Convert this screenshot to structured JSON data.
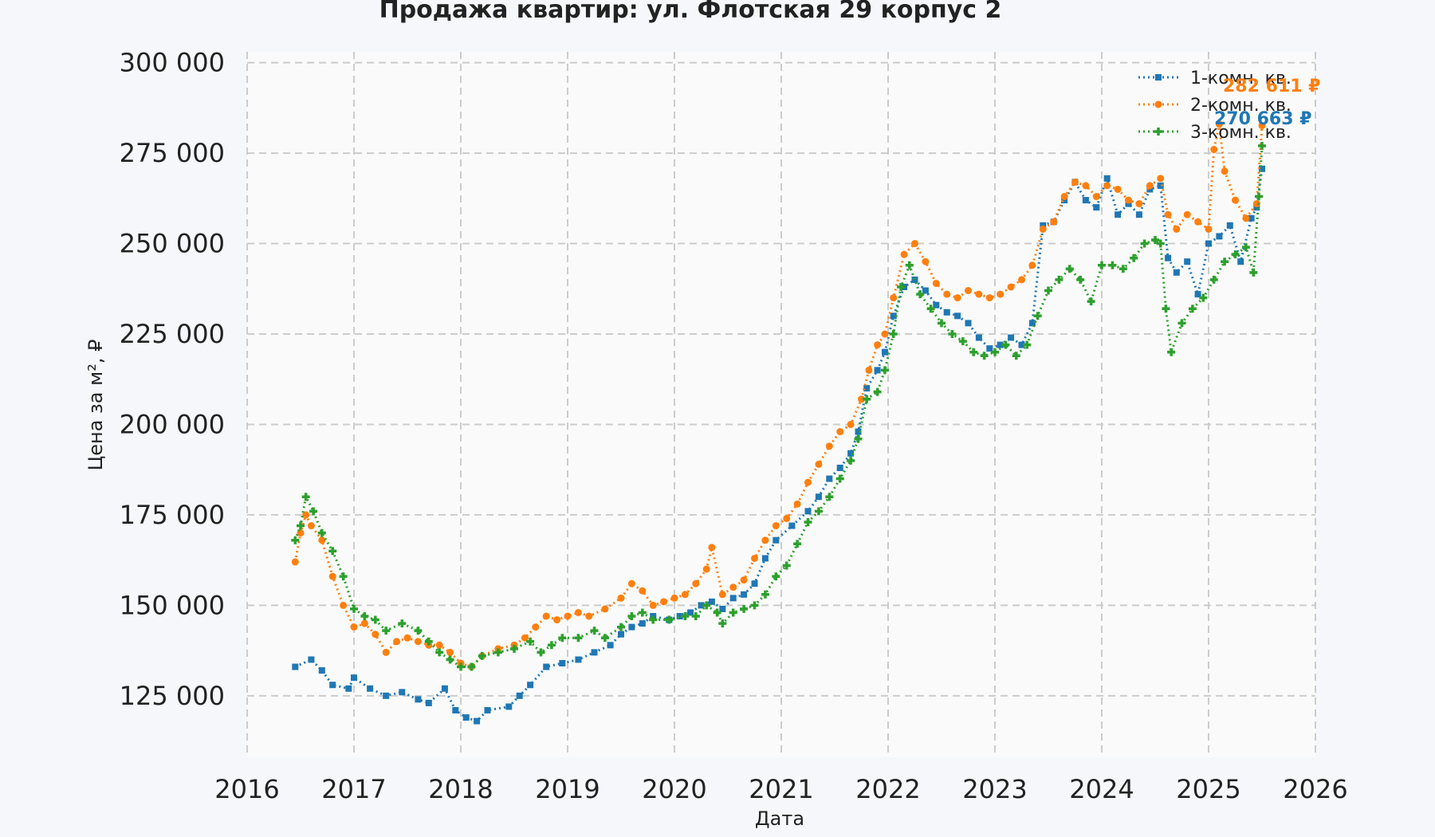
{
  "chart_data": {
    "type": "scatter",
    "title": "Продажа квартир: ул. Флотская 29 корпус 2",
    "xlabel": "Дата",
    "ylabel": "Цена за м², ₽",
    "xlim": [
      2016,
      2026
    ],
    "ylim": [
      108000,
      303000
    ],
    "grid": true,
    "legend_position": "top-right",
    "x_ticks": [
      "2016",
      "2017",
      "2018",
      "2019",
      "2020",
      "2021",
      "2022",
      "2023",
      "2024",
      "2025",
      "2026"
    ],
    "y_ticks": [
      "125 000",
      "150 000",
      "175 000",
      "200 000",
      "225 000",
      "250 000",
      "275 000",
      "300 000"
    ],
    "series": [
      {
        "name": "1-комн. кв.",
        "color": "#1f77b4",
        "marker": "square",
        "end_label": "270 663 ₽",
        "points": [
          [
            2016.45,
            133000
          ],
          [
            2016.6,
            135000
          ],
          [
            2016.7,
            132000
          ],
          [
            2016.8,
            128000
          ],
          [
            2016.95,
            127000
          ],
          [
            2017.0,
            130000
          ],
          [
            2017.15,
            127000
          ],
          [
            2017.3,
            125000
          ],
          [
            2017.45,
            126000
          ],
          [
            2017.6,
            124000
          ],
          [
            2017.7,
            123000
          ],
          [
            2017.85,
            127000
          ],
          [
            2017.95,
            121000
          ],
          [
            2018.05,
            119000
          ],
          [
            2018.15,
            118000
          ],
          [
            2018.25,
            121000
          ],
          [
            2018.45,
            122000
          ],
          [
            2018.55,
            125000
          ],
          [
            2018.65,
            128000
          ],
          [
            2018.8,
            133000
          ],
          [
            2018.95,
            134000
          ],
          [
            2019.1,
            135000
          ],
          [
            2019.25,
            137000
          ],
          [
            2019.4,
            139000
          ],
          [
            2019.5,
            142000
          ],
          [
            2019.6,
            144000
          ],
          [
            2019.7,
            145000
          ],
          [
            2019.8,
            147000
          ],
          [
            2019.95,
            146000
          ],
          [
            2020.05,
            147000
          ],
          [
            2020.15,
            148000
          ],
          [
            2020.25,
            150000
          ],
          [
            2020.35,
            151000
          ],
          [
            2020.45,
            149000
          ],
          [
            2020.55,
            152000
          ],
          [
            2020.65,
            153000
          ],
          [
            2020.75,
            156000
          ],
          [
            2020.85,
            163000
          ],
          [
            2020.95,
            168000
          ],
          [
            2021.1,
            172000
          ],
          [
            2021.25,
            176000
          ],
          [
            2021.35,
            180000
          ],
          [
            2021.45,
            185000
          ],
          [
            2021.55,
            188000
          ],
          [
            2021.65,
            192000
          ],
          [
            2021.72,
            198000
          ],
          [
            2021.8,
            210000
          ],
          [
            2021.9,
            215000
          ],
          [
            2021.97,
            220000
          ],
          [
            2022.05,
            230000
          ],
          [
            2022.15,
            238000
          ],
          [
            2022.25,
            240000
          ],
          [
            2022.35,
            237000
          ],
          [
            2022.45,
            233000
          ],
          [
            2022.55,
            231000
          ],
          [
            2022.65,
            230000
          ],
          [
            2022.75,
            228000
          ],
          [
            2022.85,
            224000
          ],
          [
            2022.95,
            221000
          ],
          [
            2023.05,
            222000
          ],
          [
            2023.15,
            224000
          ],
          [
            2023.25,
            222000
          ],
          [
            2023.35,
            228000
          ],
          [
            2023.45,
            255000
          ],
          [
            2023.55,
            256000
          ],
          [
            2023.65,
            262000
          ],
          [
            2023.75,
            267000
          ],
          [
            2023.85,
            262000
          ],
          [
            2023.95,
            260000
          ],
          [
            2024.05,
            268000
          ],
          [
            2024.15,
            258000
          ],
          [
            2024.25,
            261000
          ],
          [
            2024.35,
            258000
          ],
          [
            2024.45,
            265000
          ],
          [
            2024.55,
            266000
          ],
          [
            2024.62,
            246000
          ],
          [
            2024.7,
            242000
          ],
          [
            2024.8,
            245000
          ],
          [
            2024.9,
            236000
          ],
          [
            2025.0,
            250000
          ],
          [
            2025.1,
            252000
          ],
          [
            2025.2,
            255000
          ],
          [
            2025.3,
            245000
          ],
          [
            2025.4,
            257000
          ],
          [
            2025.45,
            260000
          ],
          [
            2025.5,
            270663
          ]
        ]
      },
      {
        "name": "2-комн. кв.",
        "color": "#ff7f0e",
        "marker": "circle",
        "end_label": "282 611 ₽",
        "points": [
          [
            2016.45,
            162000
          ],
          [
            2016.5,
            170000
          ],
          [
            2016.55,
            175000
          ],
          [
            2016.6,
            172000
          ],
          [
            2016.7,
            168000
          ],
          [
            2016.8,
            158000
          ],
          [
            2016.9,
            150000
          ],
          [
            2017.0,
            144000
          ],
          [
            2017.1,
            145000
          ],
          [
            2017.2,
            142000
          ],
          [
            2017.3,
            137000
          ],
          [
            2017.4,
            140000
          ],
          [
            2017.5,
            141000
          ],
          [
            2017.6,
            140000
          ],
          [
            2017.7,
            139000
          ],
          [
            2017.8,
            139000
          ],
          [
            2017.9,
            137000
          ],
          [
            2018.0,
            134000
          ],
          [
            2018.1,
            133000
          ],
          [
            2018.2,
            136000
          ],
          [
            2018.35,
            138000
          ],
          [
            2018.5,
            139000
          ],
          [
            2018.6,
            141000
          ],
          [
            2018.7,
            144000
          ],
          [
            2018.8,
            147000
          ],
          [
            2018.9,
            146000
          ],
          [
            2019.0,
            147000
          ],
          [
            2019.1,
            148000
          ],
          [
            2019.2,
            147000
          ],
          [
            2019.35,
            149000
          ],
          [
            2019.5,
            152000
          ],
          [
            2019.6,
            156000
          ],
          [
            2019.7,
            154000
          ],
          [
            2019.8,
            150000
          ],
          [
            2019.9,
            151000
          ],
          [
            2020.0,
            152000
          ],
          [
            2020.1,
            153000
          ],
          [
            2020.2,
            156000
          ],
          [
            2020.3,
            160000
          ],
          [
            2020.35,
            166000
          ],
          [
            2020.45,
            153000
          ],
          [
            2020.55,
            155000
          ],
          [
            2020.65,
            157000
          ],
          [
            2020.75,
            163000
          ],
          [
            2020.85,
            168000
          ],
          [
            2020.95,
            172000
          ],
          [
            2021.05,
            174000
          ],
          [
            2021.15,
            178000
          ],
          [
            2021.25,
            184000
          ],
          [
            2021.35,
            189000
          ],
          [
            2021.45,
            194000
          ],
          [
            2021.55,
            198000
          ],
          [
            2021.65,
            200000
          ],
          [
            2021.75,
            207000
          ],
          [
            2021.82,
            215000
          ],
          [
            2021.9,
            222000
          ],
          [
            2021.97,
            225000
          ],
          [
            2022.05,
            235000
          ],
          [
            2022.15,
            247000
          ],
          [
            2022.25,
            250000
          ],
          [
            2022.35,
            245000
          ],
          [
            2022.45,
            239000
          ],
          [
            2022.55,
            236000
          ],
          [
            2022.65,
            235000
          ],
          [
            2022.75,
            237000
          ],
          [
            2022.85,
            236000
          ],
          [
            2022.95,
            235000
          ],
          [
            2023.05,
            236000
          ],
          [
            2023.15,
            238000
          ],
          [
            2023.25,
            240000
          ],
          [
            2023.35,
            244000
          ],
          [
            2023.45,
            254000
          ],
          [
            2023.55,
            256000
          ],
          [
            2023.65,
            263000
          ],
          [
            2023.75,
            267000
          ],
          [
            2023.85,
            266000
          ],
          [
            2023.95,
            263000
          ],
          [
            2024.05,
            266000
          ],
          [
            2024.15,
            265000
          ],
          [
            2024.25,
            262000
          ],
          [
            2024.35,
            261000
          ],
          [
            2024.45,
            266000
          ],
          [
            2024.55,
            268000
          ],
          [
            2024.62,
            258000
          ],
          [
            2024.7,
            254000
          ],
          [
            2024.8,
            258000
          ],
          [
            2024.9,
            256000
          ],
          [
            2025.0,
            254000
          ],
          [
            2025.05,
            276000
          ],
          [
            2025.1,
            283000
          ],
          [
            2025.15,
            270000
          ],
          [
            2025.25,
            262000
          ],
          [
            2025.35,
            257000
          ],
          [
            2025.45,
            261000
          ],
          [
            2025.5,
            282611
          ]
        ]
      },
      {
        "name": "3-комн. кв.",
        "color": "#2ca02c",
        "marker": "plus",
        "end_label": "",
        "points": [
          [
            2016.45,
            168000
          ],
          [
            2016.5,
            172000
          ],
          [
            2016.55,
            180000
          ],
          [
            2016.62,
            176000
          ],
          [
            2016.7,
            170000
          ],
          [
            2016.8,
            165000
          ],
          [
            2016.9,
            158000
          ],
          [
            2017.0,
            149000
          ],
          [
            2017.1,
            147000
          ],
          [
            2017.2,
            146000
          ],
          [
            2017.3,
            143000
          ],
          [
            2017.45,
            145000
          ],
          [
            2017.6,
            143000
          ],
          [
            2017.7,
            140000
          ],
          [
            2017.8,
            137000
          ],
          [
            2017.9,
            135000
          ],
          [
            2018.0,
            133000
          ],
          [
            2018.1,
            133000
          ],
          [
            2018.2,
            136000
          ],
          [
            2018.35,
            137000
          ],
          [
            2018.5,
            138000
          ],
          [
            2018.65,
            140000
          ],
          [
            2018.75,
            137000
          ],
          [
            2018.85,
            139000
          ],
          [
            2018.95,
            141000
          ],
          [
            2019.1,
            141000
          ],
          [
            2019.25,
            143000
          ],
          [
            2019.35,
            141000
          ],
          [
            2019.5,
            144000
          ],
          [
            2019.6,
            147000
          ],
          [
            2019.7,
            148000
          ],
          [
            2019.8,
            146000
          ],
          [
            2019.95,
            146000
          ],
          [
            2020.1,
            147000
          ],
          [
            2020.2,
            147000
          ],
          [
            2020.3,
            150000
          ],
          [
            2020.4,
            148000
          ],
          [
            2020.45,
            145000
          ],
          [
            2020.55,
            148000
          ],
          [
            2020.65,
            149000
          ],
          [
            2020.75,
            150000
          ],
          [
            2020.85,
            153000
          ],
          [
            2020.95,
            158000
          ],
          [
            2021.05,
            161000
          ],
          [
            2021.15,
            167000
          ],
          [
            2021.25,
            173000
          ],
          [
            2021.35,
            176000
          ],
          [
            2021.45,
            180000
          ],
          [
            2021.55,
            185000
          ],
          [
            2021.65,
            190000
          ],
          [
            2021.72,
            196000
          ],
          [
            2021.8,
            207000
          ],
          [
            2021.9,
            209000
          ],
          [
            2021.97,
            215000
          ],
          [
            2022.05,
            225000
          ],
          [
            2022.12,
            238000
          ],
          [
            2022.2,
            244000
          ],
          [
            2022.3,
            236000
          ],
          [
            2022.4,
            232000
          ],
          [
            2022.5,
            228000
          ],
          [
            2022.6,
            225000
          ],
          [
            2022.7,
            223000
          ],
          [
            2022.8,
            220000
          ],
          [
            2022.9,
            219000
          ],
          [
            2023.0,
            220000
          ],
          [
            2023.1,
            222000
          ],
          [
            2023.2,
            219000
          ],
          [
            2023.3,
            222000
          ],
          [
            2023.4,
            230000
          ],
          [
            2023.5,
            237000
          ],
          [
            2023.6,
            240000
          ],
          [
            2023.7,
            243000
          ],
          [
            2023.8,
            240000
          ],
          [
            2023.9,
            234000
          ],
          [
            2024.0,
            244000
          ],
          [
            2024.1,
            244000
          ],
          [
            2024.2,
            243000
          ],
          [
            2024.3,
            246000
          ],
          [
            2024.4,
            250000
          ],
          [
            2024.5,
            251000
          ],
          [
            2024.55,
            250000
          ],
          [
            2024.6,
            232000
          ],
          [
            2024.65,
            220000
          ],
          [
            2024.75,
            228000
          ],
          [
            2024.85,
            232000
          ],
          [
            2024.95,
            235000
          ],
          [
            2025.05,
            240000
          ],
          [
            2025.15,
            245000
          ],
          [
            2025.25,
            247000
          ],
          [
            2025.35,
            249000
          ],
          [
            2025.42,
            242000
          ],
          [
            2025.47,
            263000
          ],
          [
            2025.5,
            277000
          ]
        ]
      }
    ]
  }
}
